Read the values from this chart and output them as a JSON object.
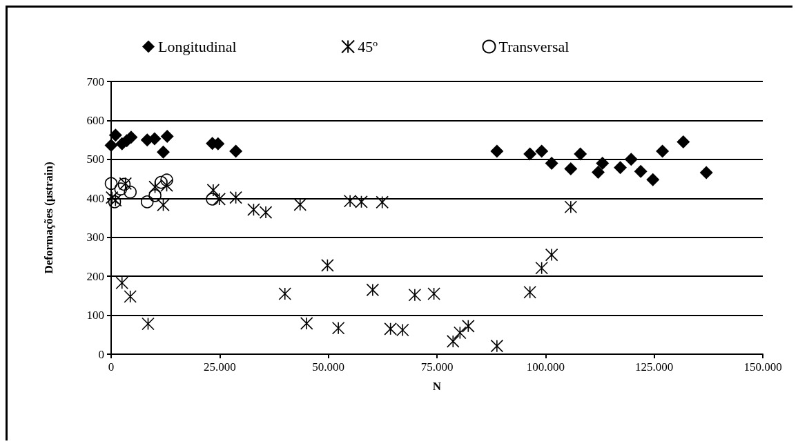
{
  "chart_data": {
    "type": "scatter",
    "xlabel": "N",
    "ylabel": "Deformações (μstrain)",
    "xlim": [
      0,
      150000
    ],
    "xticks": [
      0,
      {
        "value": 25000,
        "label": "25.000"
      },
      {
        "value": 50000,
        "label": "50.000"
      },
      {
        "value": 75000,
        "label": "75.000"
      },
      {
        "value": 100000,
        "label": "100.000"
      },
      {
        "value": 125000,
        "label": "125.000"
      },
      {
        "value": 150000,
        "label": "150.000"
      }
    ],
    "ylim": [
      0,
      700
    ],
    "yticks": [
      0,
      100,
      200,
      300,
      400,
      500,
      600,
      700
    ],
    "grid": "y",
    "legend": "top",
    "series": [
      {
        "name": "Longitudinal",
        "color": "#000000",
        "marker": "diamond",
        "x": [
          0,
          1000,
          2500,
          3600,
          4600,
          8300,
          10000,
          12000,
          12900,
          23300,
          24600,
          28700,
          88800,
          96400,
          99100,
          101400,
          105800,
          108000,
          112100,
          113100,
          117200,
          119700,
          121900,
          124700,
          126900,
          131700,
          137000
        ],
        "values": [
          536,
          562,
          540,
          548,
          557,
          550,
          553,
          519,
          559,
          541,
          540,
          521,
          521,
          514,
          521,
          490,
          476,
          514,
          467,
          490,
          479,
          500,
          469,
          448,
          521,
          545,
          466
        ]
      },
      {
        "name": "45º",
        "color": "#000000",
        "marker": "cross",
        "x": [
          200,
          1000,
          3300,
          10100,
          12000,
          12800,
          23500,
          24900,
          28700,
          32800,
          35600,
          43500,
          49800,
          2500,
          4400,
          8500,
          40000,
          45000,
          55000,
          57600,
          62400,
          99100,
          101400,
          60200,
          69900,
          74300,
          96400,
          52300,
          64300,
          67100,
          78700,
          80300,
          82200,
          88800,
          105800
        ],
        "values": [
          402,
          395,
          438,
          429,
          383,
          433,
          421,
          398,
          402,
          371,
          364,
          384,
          228,
          183,
          148,
          78,
          155,
          79,
          393,
          391,
          390,
          221,
          255,
          165,
          152,
          155,
          159,
          67,
          65,
          62,
          33,
          55,
          72,
          21,
          378
        ]
      },
      {
        "name": "Transversal",
        "color": "#000000",
        "marker": "circle",
        "x": [
          0,
          800,
          2200,
          3000,
          4400,
          8300,
          10100,
          11500,
          12800,
          23300
        ],
        "values": [
          438,
          391,
          424,
          436,
          416,
          391,
          407,
          441,
          447,
          398
        ]
      }
    ]
  }
}
